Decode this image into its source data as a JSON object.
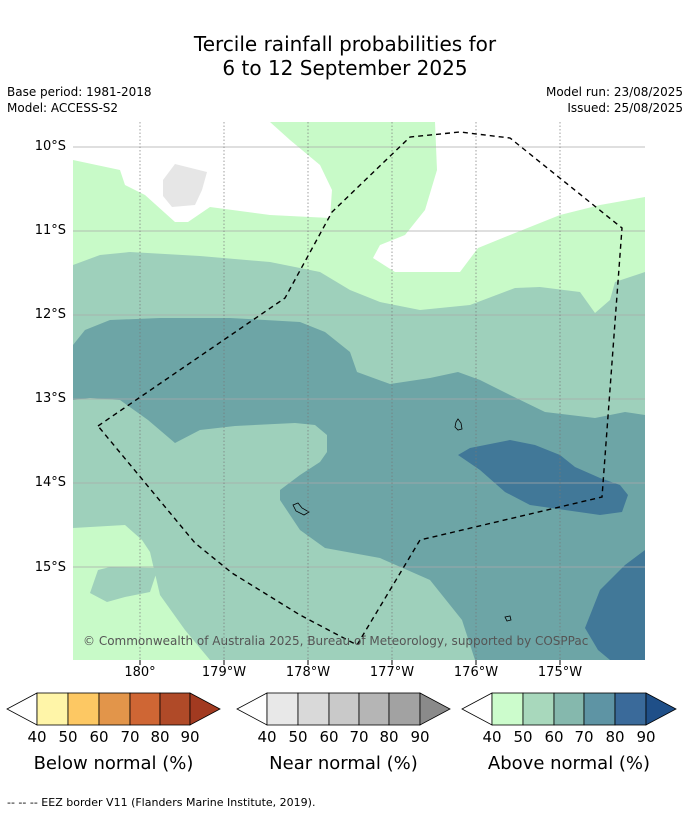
{
  "title_line1": "Tercile rainfall probabilities for",
  "title_line2": "6 to 12 September 2025",
  "base_period": "Base period: 1981-2018",
  "model": "Model: ACCESS-S2",
  "model_run": "Model run: 23/08/2025",
  "issued": "Issued: 25/08/2025",
  "lat_labels": [
    "10°S",
    "11°S",
    "12°S",
    "13°S",
    "14°S",
    "15°S"
  ],
  "lon_labels": [
    "180°",
    "179°W",
    "178°W",
    "177°W",
    "176°W",
    "175°W"
  ],
  "copyright": "© Commonwealth of Australia 2025, Bureau of Meteorology, supported by COSPPac",
  "colorbars": [
    {
      "title": "Below normal (%)",
      "ticks": [
        "40",
        "50",
        "60",
        "70",
        "80",
        "90"
      ],
      "colors": [
        "#fff5a8",
        "#fdc863",
        "#e2954a",
        "#cf6634",
        "#b04a28",
        "#a23a20"
      ]
    },
    {
      "title": "Near normal (%)",
      "ticks": [
        "40",
        "50",
        "60",
        "70",
        "80",
        "90"
      ],
      "colors": [
        "#e8e8e8",
        "#d9d9d9",
        "#c9c9c9",
        "#b5b5b5",
        "#a2a2a2",
        "#8a8a8a"
      ]
    },
    {
      "title": "Above normal (%)",
      "ticks": [
        "40",
        "50",
        "60",
        "70",
        "80",
        "90"
      ],
      "colors": [
        "#ccfccc",
        "#a8d8bc",
        "#85b8ad",
        "#5e94a4",
        "#3a6a9a",
        "#1f4f88"
      ]
    }
  ],
  "footnote": "-- -- -- EEZ border V11 (Flanders Marine Institute, 2019).",
  "map_colors": {
    "above_40_50": "#c8fac8",
    "above_50_60": "#9ed0bb",
    "above_60_70": "#6da5a6",
    "above_70_80": "#417898",
    "near_40_50": "#e6e6e6"
  }
}
